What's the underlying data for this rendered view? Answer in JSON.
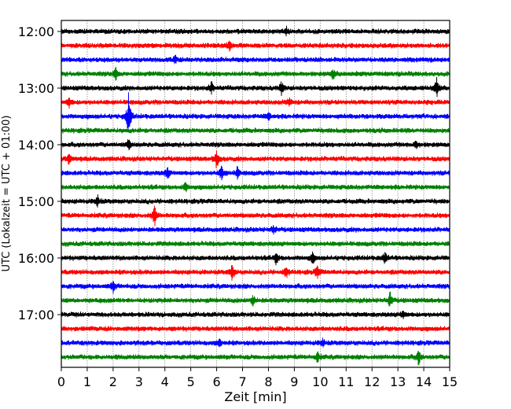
{
  "chart_data": {
    "type": "line",
    "title": "",
    "xlabel": "Zeit  [min]",
    "ylabel": "UTC (Lokalzeit = UTC + 01:00)",
    "xlim": [
      0,
      15
    ],
    "x_ticks": [
      "0",
      "1",
      "2",
      "3",
      "4",
      "5",
      "6",
      "7",
      "8",
      "9",
      "10",
      "11",
      "12",
      "13",
      "14",
      "15"
    ],
    "y_tick_labels": [
      "12:00",
      "13:00",
      "14:00",
      "15:00",
      "16:00",
      "17:00"
    ],
    "traces_per_hour": 4,
    "trace_count": 24,
    "trace_colors": [
      "#000000",
      "#ff0000",
      "#0000ff",
      "#008000"
    ],
    "grid": "vertical dotted at each minute",
    "noise_amplitude": 1,
    "events": [
      {
        "trace": 0,
        "minute": 8.7,
        "amp": 2
      },
      {
        "trace": 1,
        "minute": 6.5,
        "amp": 4
      },
      {
        "trace": 2,
        "minute": 4.4,
        "amp": 2
      },
      {
        "trace": 3,
        "minute": 2.1,
        "amp": 3
      },
      {
        "trace": 3,
        "minute": 10.5,
        "amp": 3
      },
      {
        "trace": 4,
        "minute": 5.8,
        "amp": 3
      },
      {
        "trace": 4,
        "minute": 8.5,
        "amp": 3.5
      },
      {
        "trace": 4,
        "minute": 14.5,
        "amp": 5
      },
      {
        "trace": 5,
        "minute": 0.3,
        "amp": 2.5
      },
      {
        "trace": 5,
        "minute": 8.8,
        "amp": 2.5
      },
      {
        "trace": 6,
        "minute": 2.6,
        "amp": 12
      },
      {
        "trace": 6,
        "minute": 8.0,
        "amp": 2
      },
      {
        "trace": 8,
        "minute": 2.6,
        "amp": 2.5
      },
      {
        "trace": 8,
        "minute": 13.7,
        "amp": 2
      },
      {
        "trace": 9,
        "minute": 0.3,
        "amp": 3
      },
      {
        "trace": 9,
        "minute": 6.0,
        "amp": 5
      },
      {
        "trace": 10,
        "minute": 4.1,
        "amp": 3
      },
      {
        "trace": 10,
        "minute": 6.2,
        "amp": 4
      },
      {
        "trace": 10,
        "minute": 6.8,
        "amp": 3
      },
      {
        "trace": 11,
        "minute": 4.8,
        "amp": 2.5
      },
      {
        "trace": 12,
        "minute": 1.4,
        "amp": 3
      },
      {
        "trace": 13,
        "minute": 3.6,
        "amp": 6
      },
      {
        "trace": 14,
        "minute": 8.2,
        "amp": 2.5
      },
      {
        "trace": 16,
        "minute": 8.3,
        "amp": 3
      },
      {
        "trace": 16,
        "minute": 9.7,
        "amp": 3
      },
      {
        "trace": 16,
        "minute": 12.5,
        "amp": 3.5
      },
      {
        "trace": 17,
        "minute": 6.6,
        "amp": 4.5
      },
      {
        "trace": 17,
        "minute": 8.7,
        "amp": 3
      },
      {
        "trace": 17,
        "minute": 9.9,
        "amp": 3.5
      },
      {
        "trace": 18,
        "minute": 2.0,
        "amp": 3
      },
      {
        "trace": 19,
        "minute": 7.4,
        "amp": 3
      },
      {
        "trace": 19,
        "minute": 12.7,
        "amp": 4.5
      },
      {
        "trace": 20,
        "minute": 13.2,
        "amp": 2
      },
      {
        "trace": 22,
        "minute": 6.1,
        "amp": 2
      },
      {
        "trace": 22,
        "minute": 10.1,
        "amp": 2
      },
      {
        "trace": 23,
        "minute": 9.9,
        "amp": 3
      },
      {
        "trace": 23,
        "minute": 13.8,
        "amp": 4
      }
    ]
  }
}
